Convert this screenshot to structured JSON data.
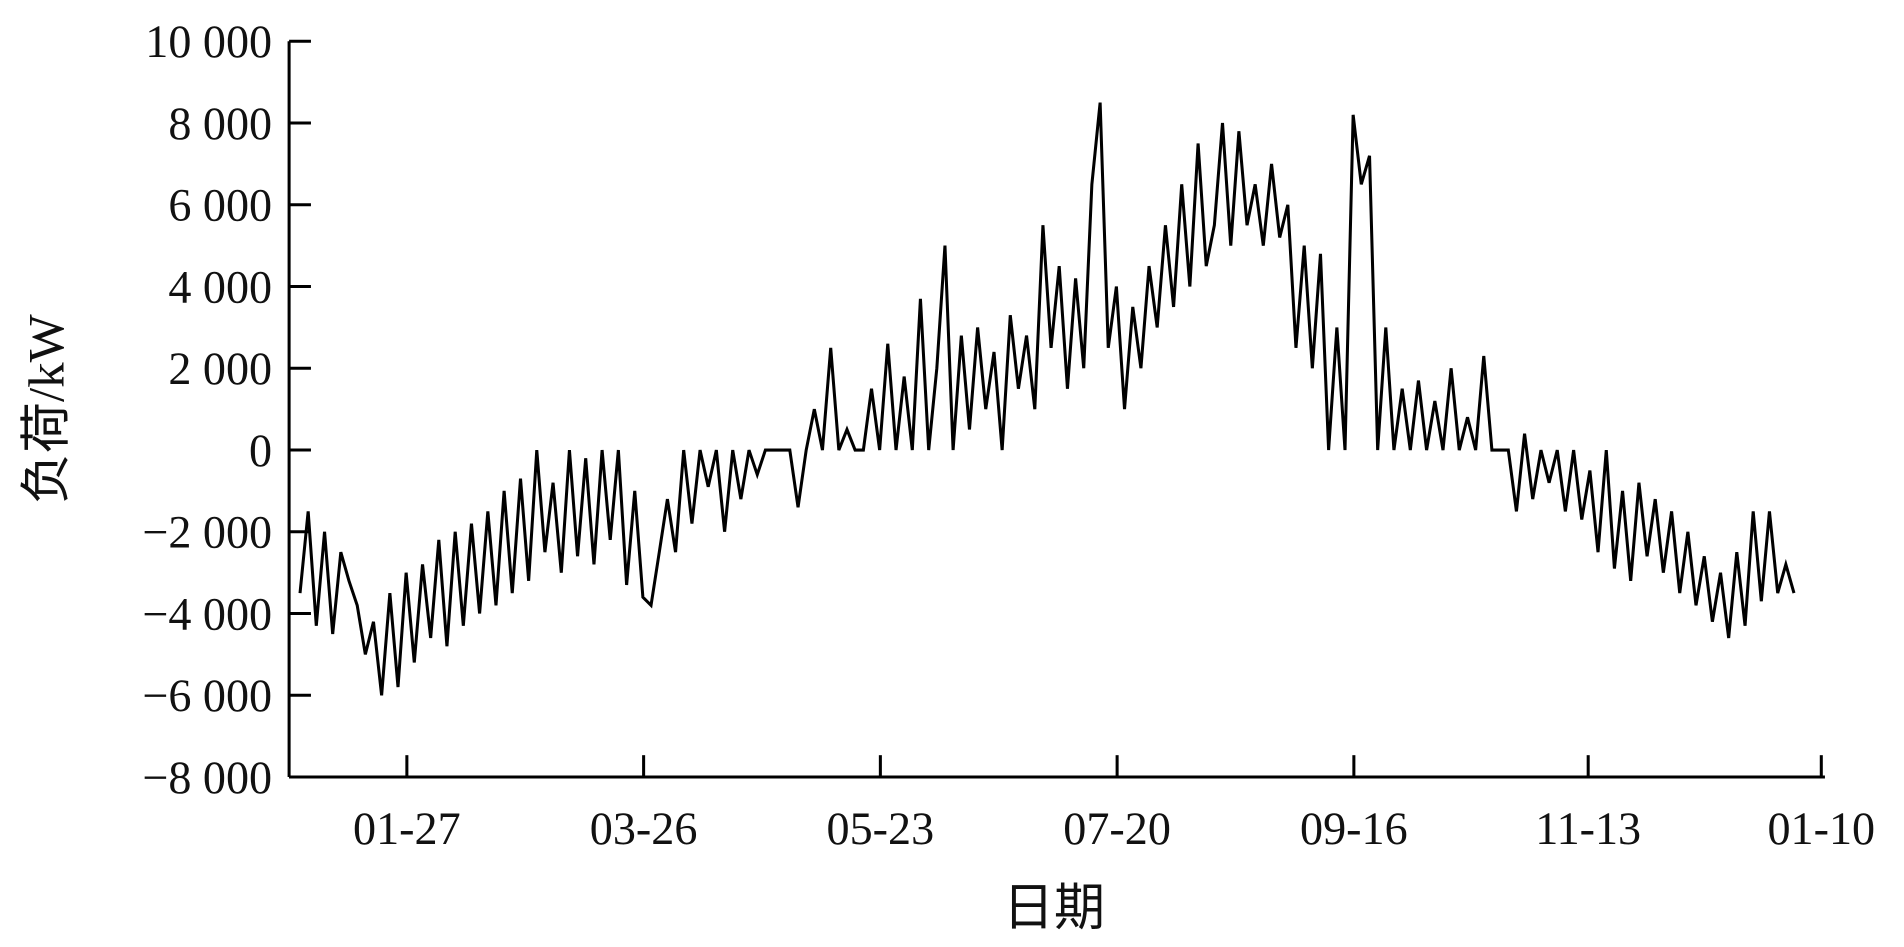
{
  "chart_data": {
    "type": "line",
    "title": "",
    "xlabel": "日期",
    "ylabel": "负荷/kW",
    "ylim": [
      -8000,
      10000
    ],
    "yticks": [
      10000,
      8000,
      6000,
      4000,
      2000,
      0,
      -2000,
      -4000,
      -6000,
      -8000
    ],
    "ytick_labels": [
      "10 000",
      "8 000",
      "6 000",
      "4 000",
      "2 000",
      "0",
      "−2 000",
      "−4 000",
      "−6 000",
      "−8 000"
    ],
    "xtick_labels": [
      "01-27",
      "03-26",
      "05-23",
      "07-20",
      "09-16",
      "11-13",
      "01-10"
    ],
    "grid": false,
    "legend": "none",
    "line_color": "#000000",
    "series": [
      {
        "start": "01-01",
        "end": "12-31",
        "step_days": 2,
        "values": [
          -3500,
          -1500,
          -4300,
          -2000,
          -4500,
          -2500,
          -3200,
          -3800,
          -5000,
          -4200,
          -6000,
          -3500,
          -5800,
          -3000,
          -5200,
          -2800,
          -4600,
          -2200,
          -4800,
          -2000,
          -4300,
          -1800,
          -4000,
          -1500,
          -3800,
          -1000,
          -3500,
          -700,
          -3200,
          0,
          -2500,
          -800,
          -3000,
          0,
          -2600,
          -200,
          -2800,
          0,
          -2200,
          0,
          -3300,
          -1000,
          -3600,
          -3800,
          -2500,
          -1200,
          -2500,
          0,
          -1800,
          0,
          -900,
          0,
          -2000,
          0,
          -1200,
          0,
          -600,
          0,
          0,
          0,
          0,
          -1400,
          0,
          1000,
          0,
          2500,
          0,
          500,
          0,
          0,
          1500,
          0,
          2600,
          0,
          1800,
          0,
          3700,
          0,
          2000,
          5000,
          0,
          2800,
          500,
          3000,
          1000,
          2400,
          0,
          3300,
          1500,
          2800,
          1000,
          5500,
          2500,
          4500,
          1500,
          4200,
          2000,
          6500,
          8500,
          2500,
          4000,
          1000,
          3500,
          2000,
          4500,
          3000,
          5500,
          3500,
          6500,
          4000,
          7500,
          4500,
          5500,
          8000,
          5000,
          7800,
          5500,
          6500,
          5000,
          7000,
          5200,
          6000,
          2500,
          5000,
          2000,
          4800,
          0,
          3000,
          0,
          8200,
          6500,
          7200,
          0,
          3000,
          0,
          1500,
          0,
          1700,
          0,
          1200,
          0,
          2000,
          0,
          800,
          0,
          2300,
          0,
          0,
          0,
          -1500,
          400,
          -1200,
          0,
          -800,
          0,
          -1500,
          0,
          -1700,
          -500,
          -2500,
          0,
          -2900,
          -1000,
          -3200,
          -800,
          -2600,
          -1200,
          -3000,
          -1500,
          -3500,
          -2000,
          -3800,
          -2600,
          -4200,
          -3000,
          -4600,
          -2500,
          -4300,
          -1500,
          -3700,
          -1500,
          -3500,
          -2800,
          -3500
        ]
      }
    ]
  }
}
